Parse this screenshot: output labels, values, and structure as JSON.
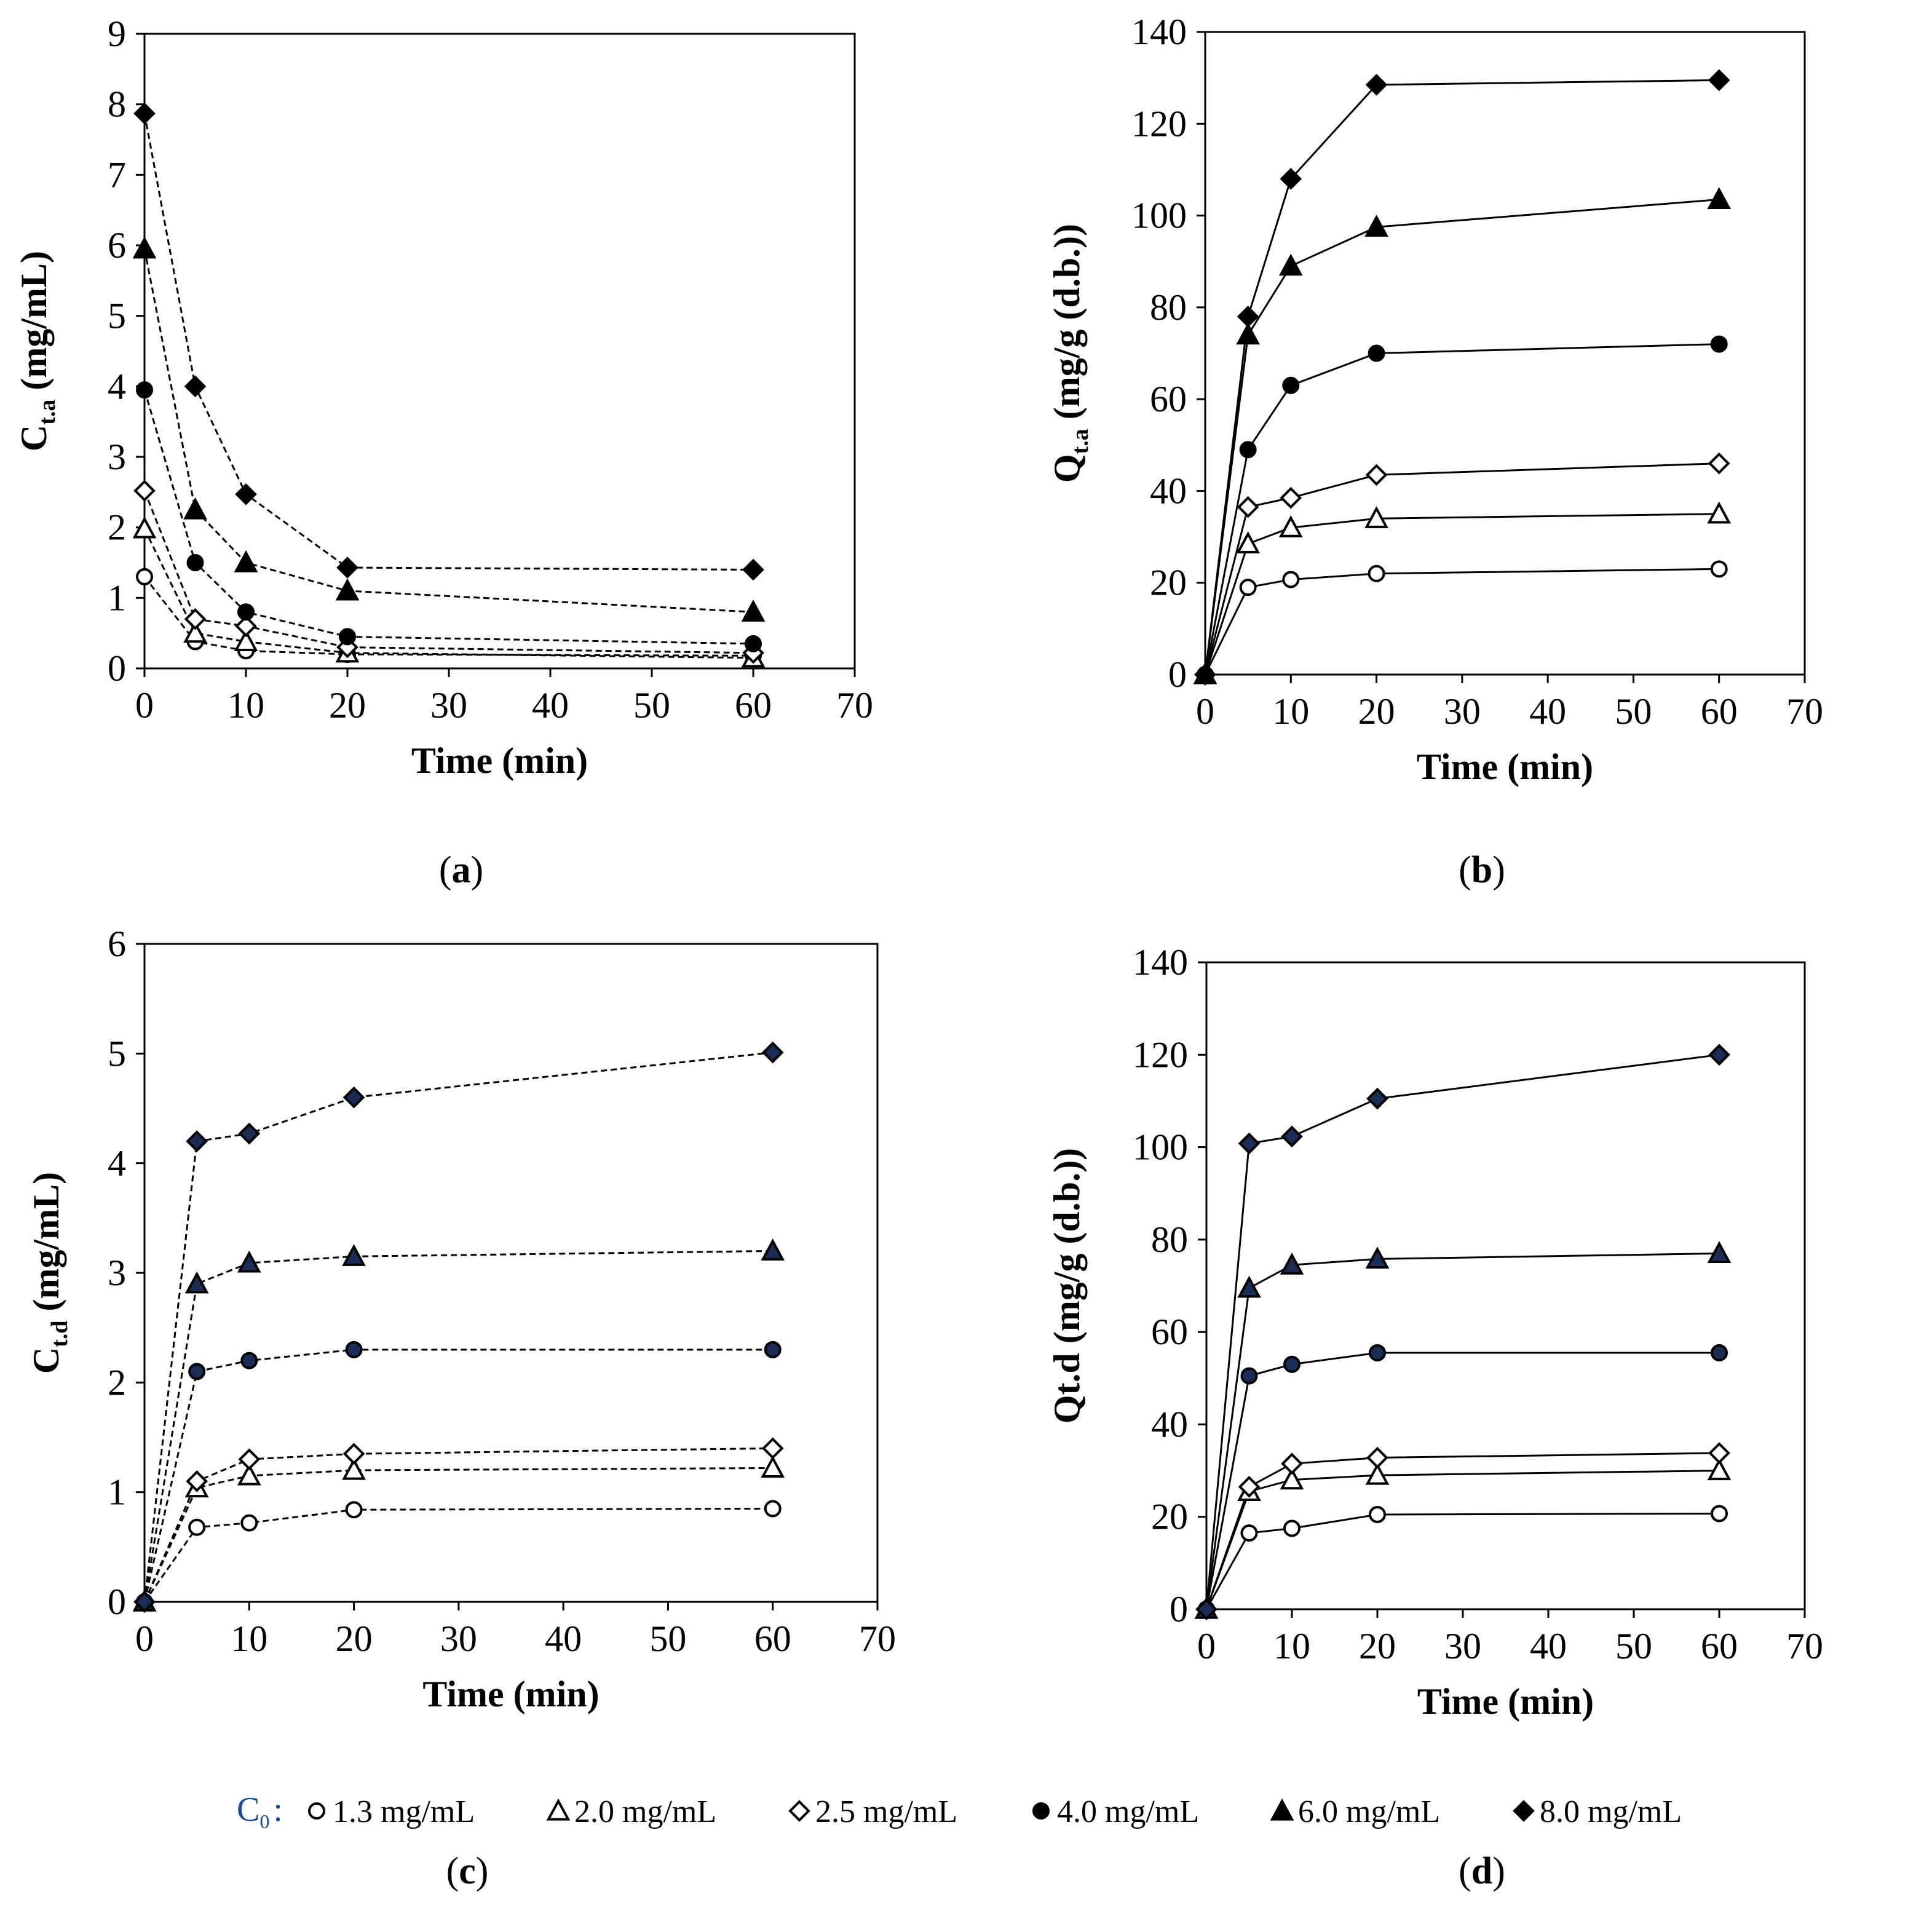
{
  "colors": {
    "dark_fill": "#1b2d55",
    "line": "#000000",
    "c0_label": "#1a4e8f"
  },
  "legend": {
    "prefix": "C",
    "prefix_sub": "0",
    "colon": ":",
    "items": [
      {
        "marker": "circle-open",
        "label": "1.3 mg/mL"
      },
      {
        "marker": "triangle-open",
        "label": "2.0 mg/mL"
      },
      {
        "marker": "diamond-open",
        "label": "2.5 mg/mL"
      },
      {
        "marker": "circle-filled",
        "label": "4.0 mg/mL"
      },
      {
        "marker": "triangle-filled",
        "label": "6.0 mg/mL"
      },
      {
        "marker": "diamond-filled",
        "label": "8.0 mg/mL"
      }
    ]
  },
  "chart_data": [
    {
      "id": "a",
      "panel_label": "a",
      "type": "line",
      "line_style": "dashed",
      "marker_fill": "black",
      "xlabel": "Time (min)",
      "ylabel_main": "C",
      "ylabel_sub": "t.a",
      "ylabel_rest": " (mg/mL)",
      "xlim": [
        0,
        70
      ],
      "ylim": [
        0,
        9
      ],
      "xticks": [
        0,
        10,
        20,
        30,
        40,
        50,
        60,
        70
      ],
      "yticks": [
        0,
        1,
        2,
        3,
        4,
        5,
        6,
        7,
        8,
        9
      ],
      "x": [
        0,
        5,
        10,
        20,
        60
      ],
      "series": [
        {
          "name": "1.3 mg/mL",
          "marker": "circle-open",
          "values": [
            1.3,
            0.38,
            0.25,
            0.2,
            0.18
          ]
        },
        {
          "name": "2.0 mg/mL",
          "marker": "triangle-open",
          "values": [
            1.98,
            0.5,
            0.38,
            0.22,
            0.15
          ]
        },
        {
          "name": "2.5 mg/mL",
          "marker": "diamond-open",
          "values": [
            2.52,
            0.7,
            0.6,
            0.3,
            0.22
          ]
        },
        {
          "name": "4.0 mg/mL",
          "marker": "circle-filled",
          "values": [
            3.95,
            1.5,
            0.8,
            0.45,
            0.35
          ]
        },
        {
          "name": "6.0 mg/mL",
          "marker": "triangle-filled",
          "values": [
            5.95,
            2.25,
            1.5,
            1.1,
            0.8
          ]
        },
        {
          "name": "8.0 mg/mL",
          "marker": "diamond-filled",
          "values": [
            7.87,
            4.0,
            2.47,
            1.43,
            1.4
          ]
        }
      ]
    },
    {
      "id": "b",
      "panel_label": "b",
      "type": "line",
      "line_style": "solid",
      "marker_fill": "black",
      "xlabel": "Time (min)",
      "ylabel_main": "Q",
      "ylabel_sub": "t.a",
      "ylabel_rest": " (mg/g (d.b.))",
      "xlim": [
        0,
        70
      ],
      "ylim": [
        0,
        140
      ],
      "xticks": [
        0,
        10,
        20,
        30,
        40,
        50,
        60,
        70
      ],
      "yticks": [
        0,
        20,
        40,
        60,
        80,
        100,
        120,
        140
      ],
      "x": [
        0,
        5,
        10,
        20,
        60
      ],
      "series": [
        {
          "name": "1.3 mg/mL",
          "marker": "circle-open",
          "values": [
            0,
            19,
            20.7,
            22,
            23
          ]
        },
        {
          "name": "2.0 mg/mL",
          "marker": "triangle-open",
          "values": [
            0,
            28.5,
            32,
            34,
            35
          ]
        },
        {
          "name": "2.5 mg/mL",
          "marker": "diamond-open",
          "values": [
            0,
            36.5,
            38.5,
            43.5,
            46
          ]
        },
        {
          "name": "4.0 mg/mL",
          "marker": "circle-filled",
          "values": [
            0,
            49,
            63,
            70,
            72
          ]
        },
        {
          "name": "6.0 mg/mL",
          "marker": "triangle-filled",
          "values": [
            0,
            74,
            89,
            97.5,
            103.5
          ]
        },
        {
          "name": "8.0 mg/mL",
          "marker": "diamond-filled",
          "values": [
            0,
            78,
            108,
            128.5,
            129.5
          ]
        }
      ]
    },
    {
      "id": "c",
      "panel_label": "c",
      "type": "line",
      "line_style": "dashed",
      "marker_fill": "navy",
      "xlabel": "Time (min)",
      "ylabel_main": "C",
      "ylabel_sub": "t.d",
      "ylabel_rest": " (mg/mL)",
      "xlim": [
        0,
        70
      ],
      "ylim": [
        0,
        6
      ],
      "xticks": [
        0,
        10,
        20,
        30,
        40,
        50,
        60,
        70
      ],
      "yticks": [
        0,
        1,
        2,
        3,
        4,
        5,
        6
      ],
      "x": [
        0,
        5,
        10,
        20,
        60
      ],
      "series": [
        {
          "name": "1.3 mg/mL",
          "marker": "circle-open",
          "values": [
            0,
            0.68,
            0.72,
            0.84,
            0.85
          ]
        },
        {
          "name": "2.0 mg/mL",
          "marker": "triangle-open",
          "values": [
            0,
            1.04,
            1.15,
            1.2,
            1.22
          ]
        },
        {
          "name": "2.5 mg/mL",
          "marker": "diamond-open",
          "values": [
            0,
            1.1,
            1.3,
            1.35,
            1.4
          ]
        },
        {
          "name": "4.0 mg/mL",
          "marker": "circle-filled",
          "values": [
            0,
            2.1,
            2.2,
            2.3,
            2.3
          ]
        },
        {
          "name": "6.0 mg/mL",
          "marker": "triangle-filled",
          "values": [
            0,
            2.9,
            3.09,
            3.15,
            3.2
          ]
        },
        {
          "name": "8.0 mg/mL",
          "marker": "diamond-filled",
          "values": [
            0,
            4.2,
            4.27,
            4.6,
            5.01
          ]
        }
      ]
    },
    {
      "id": "d",
      "panel_label": "d",
      "type": "line",
      "line_style": "solid",
      "marker_fill": "navy",
      "xlabel": "Time (min)",
      "ylabel_main": "Qt.d (mg/g (d.b.))",
      "ylabel_sub": "",
      "ylabel_rest": "",
      "xlim": [
        0,
        70
      ],
      "ylim": [
        0,
        140
      ],
      "xticks": [
        0,
        10,
        20,
        30,
        40,
        50,
        60,
        70
      ],
      "yticks": [
        0,
        20,
        40,
        60,
        80,
        100,
        120,
        140
      ],
      "x": [
        0,
        5,
        10,
        20,
        60
      ],
      "series": [
        {
          "name": "1.3 mg/mL",
          "marker": "circle-open",
          "values": [
            0,
            16.5,
            17.5,
            20.5,
            20.7
          ]
        },
        {
          "name": "2.0 mg/mL",
          "marker": "triangle-open",
          "values": [
            0,
            25.5,
            28,
            29,
            30
          ]
        },
        {
          "name": "2.5 mg/mL",
          "marker": "diamond-open",
          "values": [
            0,
            26.5,
            31.5,
            32.8,
            33.8
          ]
        },
        {
          "name": "4.0 mg/mL",
          "marker": "circle-filled",
          "values": [
            0,
            50.5,
            53,
            55.5,
            55.5
          ]
        },
        {
          "name": "6.0 mg/mL",
          "marker": "triangle-filled",
          "values": [
            0,
            69.5,
            74.5,
            75.8,
            77
          ]
        },
        {
          "name": "8.0 mg/mL",
          "marker": "diamond-filled",
          "values": [
            0,
            100.8,
            102.3,
            110.5,
            120
          ]
        }
      ]
    }
  ]
}
